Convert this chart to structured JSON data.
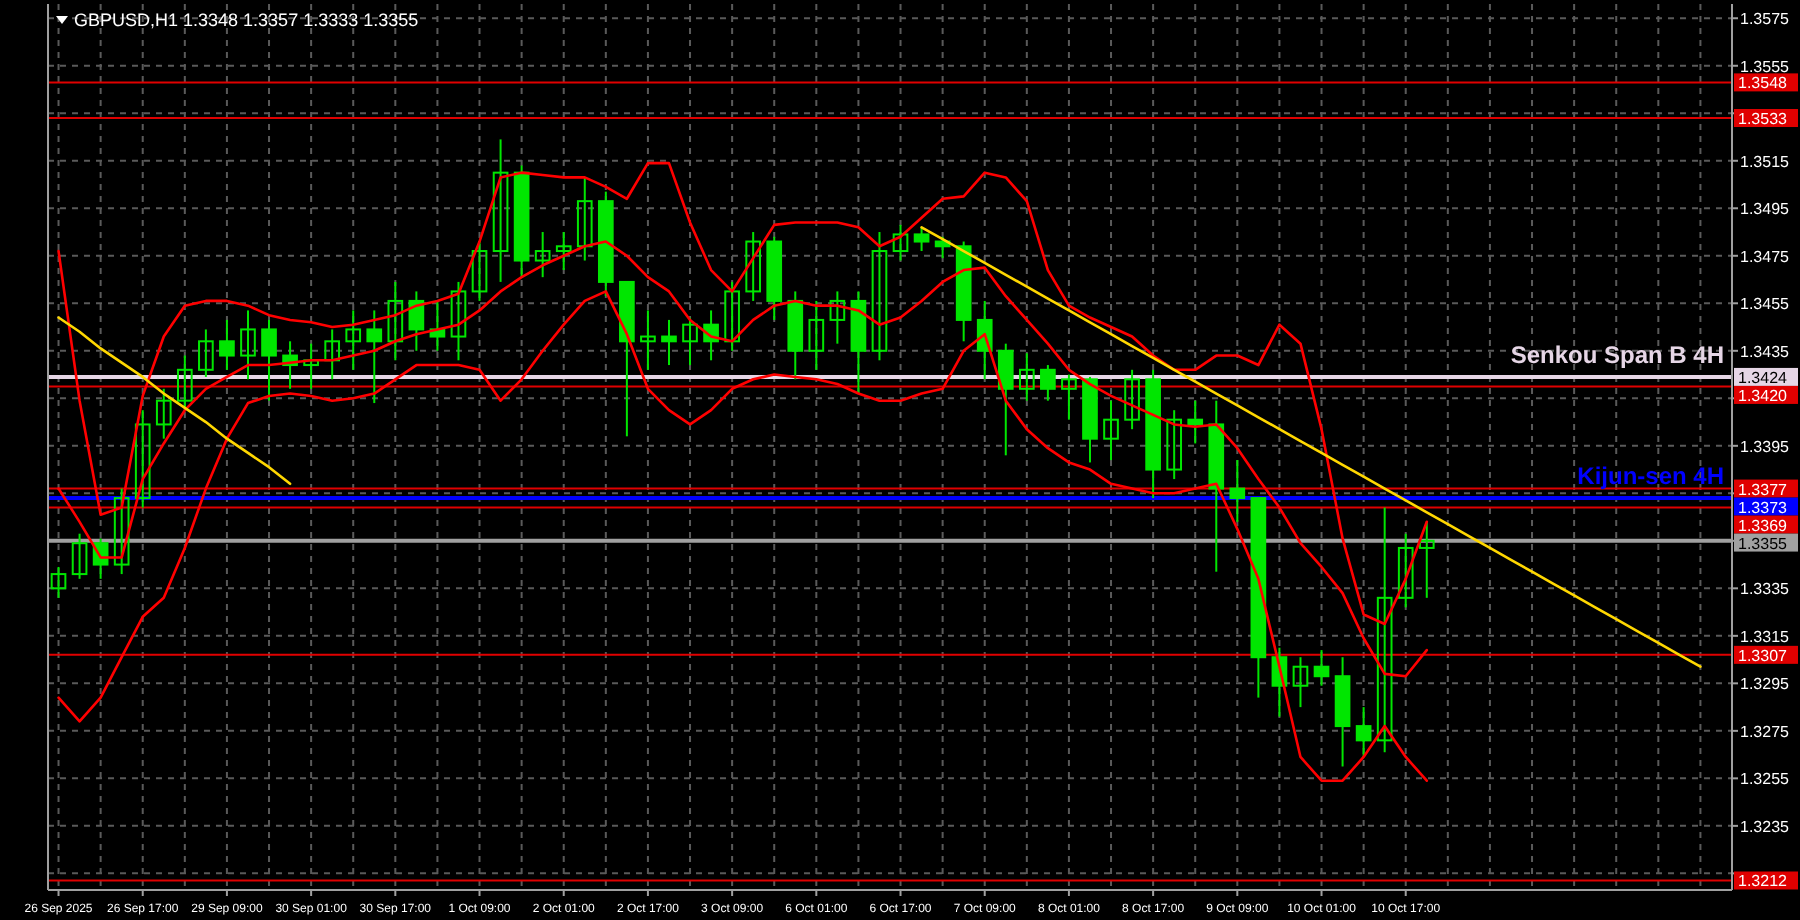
{
  "chart_data": {
    "type": "candlestick",
    "title": "GBPUSD,H1 1.3348 1.3357 1.3333 1.3355",
    "color": "#00e600",
    "categories": [
      "26 Sep 2025",
      null,
      null,
      null,
      "26 Sep 17:00",
      null,
      null,
      null,
      "29 Sep 09:00",
      null,
      null,
      null,
      "30 Sep 01:00",
      null,
      null,
      null,
      "30 Sep 17:00",
      null,
      null,
      null,
      "1 Oct 09:00",
      null,
      null,
      null,
      "2 Oct 01:00",
      null,
      null,
      null,
      "2 Oct 17:00",
      null,
      null,
      null,
      "3 Oct 09:00",
      null,
      null,
      null,
      "6 Oct 01:00",
      null,
      null,
      null,
      "6 Oct 17:00",
      null,
      null,
      null,
      "7 Oct 09:00",
      null,
      null,
      null,
      "8 Oct 01:00",
      null,
      null,
      null,
      "8 Oct 17:00",
      null,
      null,
      null,
      "9 Oct 09:00",
      null,
      null,
      null,
      "10 Oct 01:00",
      null,
      null,
      null,
      "10 Oct 17:00",
      null,
      null,
      null,
      null,
      null,
      null,
      null,
      null,
      null,
      null,
      null,
      null,
      null,
      null,
      null
    ],
    "ohlc": [
      [
        1.3335,
        1.3344,
        1.3331,
        1.3341
      ],
      [
        1.3341,
        1.3358,
        1.3339,
        1.3354
      ],
      [
        1.3354,
        1.3356,
        1.3339,
        1.3345
      ],
      [
        1.3345,
        1.3377,
        1.3341,
        1.3373
      ],
      [
        1.3373,
        1.341,
        1.3369,
        1.3404
      ],
      [
        1.3404,
        1.3419,
        1.3398,
        1.3414
      ],
      [
        1.3414,
        1.3433,
        1.341,
        1.3427
      ],
      [
        1.3427,
        1.3444,
        1.3424,
        1.3439
      ],
      [
        1.3439,
        1.3448,
        1.3427,
        1.3433
      ],
      [
        1.3433,
        1.3452,
        1.3423,
        1.3444
      ],
      [
        1.3444,
        1.3448,
        1.3414,
        1.3433
      ],
      [
        1.3433,
        1.3439,
        1.3419,
        1.3429
      ],
      [
        1.3429,
        1.3438,
        1.3419,
        1.3431
      ],
      [
        1.3431,
        1.3444,
        1.3423,
        1.3439
      ],
      [
        1.3439,
        1.3452,
        1.3427,
        1.3444
      ],
      [
        1.3444,
        1.3452,
        1.3413,
        1.3439
      ],
      [
        1.3439,
        1.3464,
        1.3431,
        1.3456
      ],
      [
        1.3456,
        1.346,
        1.3435,
        1.3444
      ],
      [
        1.3444,
        1.3456,
        1.3435,
        1.3441
      ],
      [
        1.3441,
        1.3464,
        1.3431,
        1.346
      ],
      [
        1.346,
        1.3481,
        1.3456,
        1.3477
      ],
      [
        1.3477,
        1.3524,
        1.3464,
        1.351
      ],
      [
        1.351,
        1.3513,
        1.3466,
        1.3473
      ],
      [
        1.3473,
        1.3485,
        1.3466,
        1.3477
      ],
      [
        1.3477,
        1.3485,
        1.3469,
        1.3479
      ],
      [
        1.3479,
        1.3508,
        1.3473,
        1.3498
      ],
      [
        1.3498,
        1.3502,
        1.3458,
        1.3464
      ],
      [
        1.3464,
        1.3464,
        1.3399,
        1.3439
      ],
      [
        1.3439,
        1.3452,
        1.3427,
        1.3441
      ],
      [
        1.3441,
        1.3448,
        1.3429,
        1.3439
      ],
      [
        1.3439,
        1.3449,
        1.3429,
        1.3446
      ],
      [
        1.3446,
        1.3452,
        1.3431,
        1.3439
      ],
      [
        1.3439,
        1.3464,
        1.3435,
        1.346
      ],
      [
        1.346,
        1.3485,
        1.3456,
        1.3481
      ],
      [
        1.3481,
        1.3483,
        1.3448,
        1.3456
      ],
      [
        1.3456,
        1.346,
        1.3423,
        1.3435
      ],
      [
        1.3435,
        1.3456,
        1.3427,
        1.3448
      ],
      [
        1.3448,
        1.346,
        1.3438,
        1.3456
      ],
      [
        1.3456,
        1.346,
        1.3417,
        1.3435
      ],
      [
        1.3435,
        1.3485,
        1.3431,
        1.3477
      ],
      [
        1.3477,
        1.3488,
        1.3473,
        1.3484
      ],
      [
        1.3484,
        1.3487,
        1.3477,
        1.3481
      ],
      [
        1.3481,
        1.3483,
        1.3474,
        1.3479
      ],
      [
        1.3479,
        1.3481,
        1.3439,
        1.3448
      ],
      [
        1.3448,
        1.3456,
        1.3423,
        1.3435
      ],
      [
        1.3435,
        1.3438,
        1.3391,
        1.3419
      ],
      [
        1.3419,
        1.3434,
        1.3414,
        1.3427
      ],
      [
        1.3427,
        1.3429,
        1.3414,
        1.3419
      ],
      [
        1.3419,
        1.3425,
        1.3406,
        1.3423
      ],
      [
        1.3423,
        1.3424,
        1.3388,
        1.3398
      ],
      [
        1.3398,
        1.3414,
        1.3389,
        1.3406
      ],
      [
        1.3406,
        1.3427,
        1.3402,
        1.3423
      ],
      [
        1.3423,
        1.3427,
        1.3373,
        1.3385
      ],
      [
        1.3385,
        1.341,
        1.3381,
        1.3406
      ],
      [
        1.3406,
        1.3414,
        1.3396,
        1.3404
      ],
      [
        1.3404,
        1.3414,
        1.3342,
        1.3377
      ],
      [
        1.3377,
        1.3389,
        1.3363,
        1.3373
      ],
      [
        1.3373,
        1.3373,
        1.3289,
        1.3306
      ],
      [
        1.3306,
        1.331,
        1.3281,
        1.3294
      ],
      [
        1.3294,
        1.3306,
        1.3285,
        1.3302
      ],
      [
        1.3302,
        1.3309,
        1.3294,
        1.3298
      ],
      [
        1.3298,
        1.3306,
        1.326,
        1.3277
      ],
      [
        1.3277,
        1.3285,
        1.3264,
        1.3271
      ],
      [
        1.3271,
        1.3369,
        1.3266,
        1.3331
      ],
      [
        1.3331,
        1.3358,
        1.3327,
        1.3352
      ],
      [
        1.3352,
        1.3363,
        1.3331,
        1.3355
      ],
      null,
      null,
      null,
      null,
      null,
      null,
      null,
      null,
      null,
      null,
      null,
      null,
      null,
      null
    ],
    "series": [
      {
        "type": "line",
        "color": "#ff0000",
        "values": [
          1.3477,
          1.3414,
          1.3366,
          1.3369,
          1.3416,
          1.3441,
          1.3454,
          1.3456,
          1.3456,
          1.3454,
          1.345,
          1.3448,
          1.3447,
          1.3445,
          1.3446,
          1.3448,
          1.345,
          1.3454,
          1.3456,
          1.3459,
          1.3481,
          1.3508,
          1.351,
          1.3509,
          1.3508,
          1.3508,
          1.3504,
          1.3499,
          1.3514,
          1.3514,
          1.3489,
          1.3469,
          1.346,
          1.3474,
          1.3488,
          1.3489,
          1.3489,
          1.3489,
          1.3487,
          1.3479,
          1.3483,
          1.3491,
          1.3499,
          1.35,
          1.351,
          1.3508,
          1.3498,
          1.3469,
          1.3454,
          1.3449,
          1.3445,
          1.3441,
          1.3433,
          1.3427,
          1.3427,
          1.3433,
          1.3433,
          1.3429,
          1.3446,
          1.3438,
          1.3402,
          1.3356,
          1.3324,
          1.332,
          1.3339,
          1.3363,
          null,
          null,
          null,
          null,
          null,
          null,
          null,
          null,
          null,
          null,
          null,
          null,
          null,
          null
        ]
      },
      {
        "type": "line",
        "color": "#ff0000",
        "values": [
          1.3377,
          1.3363,
          1.3348,
          1.3348,
          1.3381,
          1.3396,
          1.341,
          1.3419,
          1.3424,
          1.3429,
          1.3429,
          1.343,
          1.3431,
          1.3431,
          1.3433,
          1.3435,
          1.3439,
          1.3442,
          1.3444,
          1.3446,
          1.3452,
          1.346,
          1.3466,
          1.3471,
          1.3475,
          1.3479,
          1.3481,
          1.3475,
          1.3466,
          1.346,
          1.3448,
          1.3441,
          1.3439,
          1.3448,
          1.3454,
          1.3456,
          1.3454,
          1.3454,
          1.3452,
          1.3446,
          1.3449,
          1.3456,
          1.3464,
          1.3469,
          1.347,
          1.3458,
          1.3448,
          1.3438,
          1.3427,
          1.3421,
          1.3416,
          1.3412,
          1.3408,
          1.3404,
          1.3403,
          1.3404,
          1.3394,
          1.3381,
          1.3369,
          1.3354,
          1.3344,
          1.3333,
          1.3314,
          1.3299,
          1.3298,
          1.3309,
          null,
          null,
          null,
          null,
          null,
          null,
          null,
          null,
          null,
          null,
          null,
          null,
          null,
          null
        ]
      },
      {
        "type": "line",
        "color": "#ff0000",
        "values": [
          1.3289,
          1.3279,
          1.3289,
          1.3306,
          1.3323,
          1.3331,
          1.3352,
          1.3377,
          1.3398,
          1.3413,
          1.3416,
          1.3417,
          1.3416,
          1.3414,
          1.3415,
          1.3417,
          1.3423,
          1.3429,
          1.3429,
          1.3429,
          1.3427,
          1.3414,
          1.3423,
          1.3435,
          1.3446,
          1.3456,
          1.346,
          1.3442,
          1.3419,
          1.341,
          1.3404,
          1.341,
          1.3419,
          1.3423,
          1.3425,
          1.3424,
          1.3423,
          1.3421,
          1.3417,
          1.3414,
          1.3414,
          1.3417,
          1.3419,
          1.3435,
          1.3442,
          1.3414,
          1.3402,
          1.3394,
          1.3388,
          1.3385,
          1.3379,
          1.3377,
          1.3375,
          1.3375,
          1.3377,
          1.3379,
          1.336,
          1.3339,
          1.3302,
          1.3264,
          1.3254,
          1.3254,
          1.3264,
          1.3277,
          1.3264,
          1.3254,
          null,
          null,
          null,
          null,
          null,
          null,
          null,
          null,
          null,
          null,
          null,
          null,
          null,
          null
        ]
      },
      {
        "type": "line",
        "color": "#ffd700",
        "values": [
          1.3449,
          1.3443,
          1.3436,
          1.343,
          1.3424,
          1.3417,
          1.3411,
          1.3405,
          1.3398,
          1.3392,
          1.3386,
          1.3379,
          null,
          null,
          null,
          null,
          null,
          null,
          null,
          null,
          null,
          null,
          null,
          null,
          null,
          null,
          null,
          null,
          null,
          null,
          null,
          null,
          null,
          null,
          null,
          null,
          null,
          null,
          null,
          null,
          null,
          null,
          null,
          null,
          null,
          null,
          null,
          null,
          null,
          null,
          null,
          null,
          null,
          null,
          null,
          null,
          null,
          null,
          null,
          null,
          null,
          null,
          null,
          null,
          null,
          null,
          null,
          null,
          null,
          null,
          null,
          null,
          null,
          null,
          null,
          null,
          null,
          null,
          null,
          null
        ]
      },
      {
        "type": "line",
        "color": "#ffd700",
        "values": [
          null,
          null,
          null,
          null,
          null,
          null,
          null,
          null,
          null,
          null,
          null,
          null,
          null,
          null,
          null,
          null,
          null,
          null,
          null,
          null,
          null,
          null,
          null,
          null,
          null,
          null,
          null,
          null,
          null,
          null,
          null,
          null,
          null,
          null,
          null,
          null,
          null,
          null,
          null,
          null,
          null,
          1.3487,
          1.3482,
          1.3477,
          1.3472,
          1.3467,
          1.3462,
          1.3457,
          1.3452,
          1.3447,
          1.3442,
          1.3437,
          1.3432,
          1.3427,
          1.3422,
          1.3417,
          1.3412,
          1.3407,
          1.3402,
          1.3397,
          1.3392,
          1.3387,
          1.3382,
          1.3377,
          1.3372,
          1.3367,
          1.3362,
          1.3357,
          1.3352,
          1.3347,
          1.3342,
          1.3337,
          1.3332,
          1.3327,
          1.3322,
          1.3317,
          1.3312,
          1.3307,
          1.3302,
          null
        ]
      }
    ],
    "annotations": [
      {
        "text": "Senkou Span B 4H",
        "y": 1.3424
      },
      {
        "text": "Kijun-sen 4H",
        "y": 1.3373
      }
    ],
    "ref_lines": [
      {
        "axis": "y",
        "value": 1.3548,
        "color": "#e00000",
        "label": "1.3548"
      },
      {
        "axis": "y",
        "value": 1.3533,
        "color": "#e00000",
        "label": "1.3533"
      },
      {
        "axis": "y",
        "value": 1.3424,
        "color": "#e6d6e6",
        "label": "1.3424"
      },
      {
        "axis": "y",
        "value": 1.342,
        "color": "#e00000",
        "label": "1.3420"
      },
      {
        "axis": "y",
        "value": 1.3377,
        "color": "#e00000",
        "label": "1.3377"
      },
      {
        "axis": "y",
        "value": 1.3373,
        "color": "#0000ff",
        "label": "1.3373"
      },
      {
        "axis": "y",
        "value": 1.3369,
        "color": "#e00000",
        "label": "1.3369"
      },
      {
        "axis": "y",
        "value": 1.3355,
        "color": "#a0a0a0",
        "label": "1.3355"
      },
      {
        "axis": "y",
        "value": 1.3307,
        "color": "#e00000",
        "label": "1.3307"
      },
      {
        "axis": "y",
        "value": 1.3212,
        "color": "#e00000",
        "label": "1.3212"
      }
    ],
    "ylim": [
      1.3208,
      1.3581
    ],
    "yticks": [
      {
        "value": 1.3215,
        "label": null
      },
      1.3235,
      1.3255,
      1.3275,
      1.3295,
      1.3315,
      1.3335,
      {
        "value": 1.3355,
        "label": null
      },
      {
        "value": 1.3375,
        "label": null
      },
      1.3395,
      {
        "value": 1.3415,
        "label": null
      },
      1.3435,
      1.3455,
      1.3475,
      1.3495,
      1.3515,
      {
        "value": 1.3535,
        "label": null
      },
      1.3555,
      1.3575
    ],
    "grid": true
  }
}
